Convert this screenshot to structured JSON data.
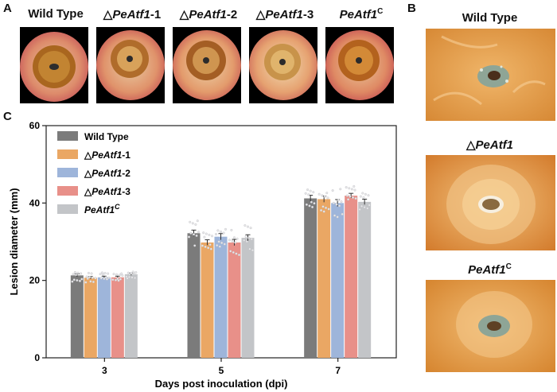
{
  "panel_letters": {
    "a": "A",
    "b": "B",
    "c": "C"
  },
  "panel_a": {
    "labels": [
      {
        "symbol": "",
        "name": "Wild Type",
        "suffix": "",
        "sup": ""
      },
      {
        "symbol": "△",
        "name": "PeAtf1",
        "suffix": "-1",
        "sup": ""
      },
      {
        "symbol": "△",
        "name": "PeAtf1",
        "suffix": "-2",
        "sup": ""
      },
      {
        "symbol": "△",
        "name": "PeAtf1",
        "suffix": "-3",
        "sup": ""
      },
      {
        "symbol": "",
        "name": "PeAtf1",
        "suffix": "",
        "sup": "C"
      }
    ]
  },
  "panel_b": {
    "labels": [
      {
        "symbol": "",
        "name": "Wild Type",
        "sup": ""
      },
      {
        "symbol": "△",
        "name": "PeAtf1",
        "sup": ""
      },
      {
        "symbol": "",
        "name": "PeAtf1",
        "sup": "C"
      }
    ]
  },
  "colors": {
    "wild_type": "#7b7b7b",
    "peatf1_1": "#eaa764",
    "peatf1_2": "#9eb5da",
    "peatf1_3": "#e89089",
    "peatf1_c": "#c3c5c8"
  },
  "chart_data": {
    "type": "bar",
    "title": "",
    "xlabel": "Days post inoculation (dpi)",
    "ylabel": "Lesion diameter (mm)",
    "ylim": [
      0,
      60
    ],
    "yticks": [
      0,
      20,
      40,
      60
    ],
    "categories": [
      "3",
      "5",
      "7"
    ],
    "legend_position": "top-left",
    "series": [
      {
        "name": "Wild Type",
        "legend_symbol": "",
        "legend_name": "Wild Type",
        "legend_suffix": "",
        "legend_sup": "",
        "values": [
          21.3,
          32.2,
          41.2
        ],
        "errors": [
          0.4,
          0.8,
          0.8
        ]
      },
      {
        "name": "△PeAtf1-1",
        "legend_symbol": "△",
        "legend_name": "PeAtf1",
        "legend_suffix": "-1",
        "legend_sup": "",
        "values": [
          20.7,
          29.8,
          41.0
        ],
        "errors": [
          0.3,
          0.7,
          0.8
        ]
      },
      {
        "name": "△PeAtf1-2",
        "legend_symbol": "△",
        "legend_name": "PeAtf1",
        "legend_suffix": "-2",
        "legend_sup": "",
        "values": [
          20.8,
          31.3,
          40.0
        ],
        "errors": [
          0.3,
          0.8,
          0.9
        ]
      },
      {
        "name": "△PeAtf1-3",
        "legend_symbol": "△",
        "legend_name": "PeAtf1",
        "legend_suffix": "-3",
        "legend_sup": "",
        "values": [
          20.8,
          29.8,
          41.9
        ],
        "errors": [
          0.3,
          0.8,
          0.6
        ]
      },
      {
        "name": "PeAtf1C",
        "legend_symbol": "",
        "legend_name": "PeAtf1",
        "legend_suffix": "",
        "legend_sup": "C",
        "values": [
          21.6,
          31.0,
          40.3
        ],
        "errors": [
          0.3,
          0.8,
          0.7
        ]
      }
    ]
  }
}
